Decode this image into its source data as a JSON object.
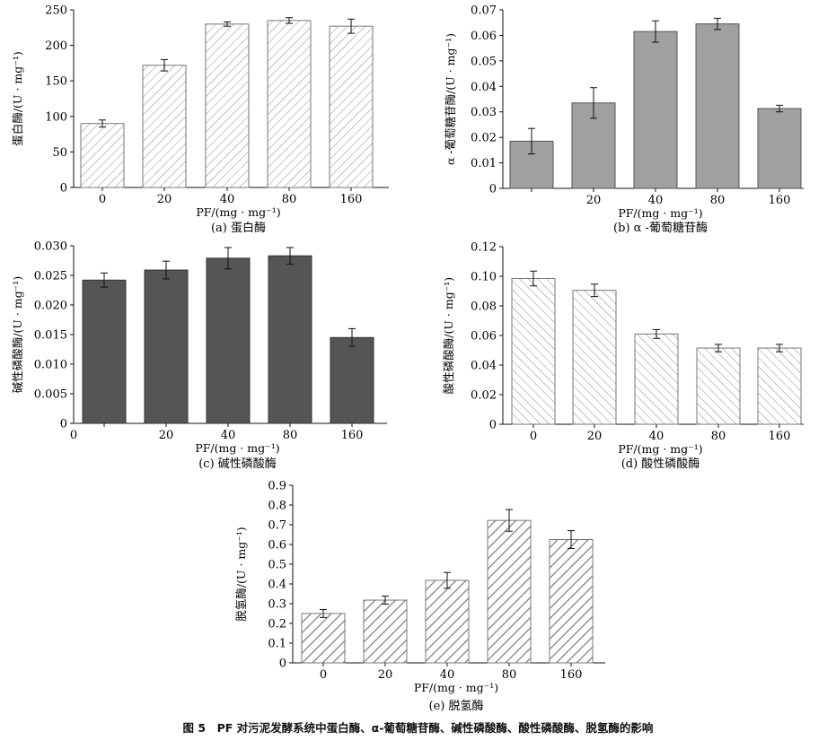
{
  "figure_caption": "图 5　PF 对污泥发酵系统中蛋白酶、α-葡萄糖苷酶、碱性磷酸酶、酸性磷酸酶、脱氢酶的影响",
  "colors": {
    "axis": "#111111",
    "hatch": "#8c8c8c",
    "solid_gray": "#a0a0a0",
    "solid_dark": "#555555"
  },
  "chart_data": [
    {
      "id": "a",
      "type": "bar",
      "caption": "(a) 蛋白酶",
      "xlabel": "PF/(mg · mg⁻¹)",
      "ylabel": "蛋白酶/(U · mg⁻¹)",
      "categories": [
        "0",
        "20",
        "40",
        "80",
        "160"
      ],
      "x_tick_labels": [
        "0",
        "20",
        "40",
        "80",
        "160"
      ],
      "values": [
        90,
        172,
        230,
        235,
        227
      ],
      "errors": [
        5,
        8,
        3,
        4,
        10
      ],
      "ylim": [
        0,
        250
      ],
      "y_ticks": [
        "0",
        "50",
        "100",
        "150",
        "200",
        "250"
      ],
      "fill": "hatch-forward"
    },
    {
      "id": "b",
      "type": "bar",
      "caption": "(b) α -葡萄糖苷酶",
      "xlabel": "PF/(mg · mg⁻¹)",
      "ylabel": "α -葡萄糖苷酶/(U · mg⁻¹)",
      "categories": [
        "0",
        "20",
        "40",
        "80",
        "160"
      ],
      "x_tick_labels": [
        "0",
        "20",
        "40",
        "80",
        "160"
      ],
      "values": [
        0.0185,
        0.0335,
        0.0615,
        0.0645,
        0.0313
      ],
      "errors": [
        0.005,
        0.006,
        0.0042,
        0.0022,
        0.0013
      ],
      "ylim": [
        0,
        0.07
      ],
      "y_ticks": [
        "0",
        "0.01",
        "0.02",
        "0.03",
        "0.04",
        "0.05",
        "0.06",
        "0.07"
      ],
      "fill": "solid-gray"
    },
    {
      "id": "c",
      "type": "bar",
      "caption": "(c) 碱性磷酸酶",
      "xlabel": "PF/(mg · mg⁻¹)",
      "ylabel": "碱性磷酸酶/(U · mg⁻¹)",
      "categories": [
        "0",
        "20",
        "40",
        "80",
        "160"
      ],
      "x_tick_labels": [
        "0",
        "20",
        "40",
        "80",
        "160"
      ],
      "values": [
        0.0242,
        0.0259,
        0.0279,
        0.0283,
        0.0145
      ],
      "errors": [
        0.0012,
        0.0015,
        0.0018,
        0.0014,
        0.0015
      ],
      "ylim": [
        0,
        0.03
      ],
      "y_ticks": [
        "0",
        "0.005",
        "0.010",
        "0.015",
        "0.020",
        "0.025",
        "0.030"
      ],
      "fill": "solid-dark"
    },
    {
      "id": "d",
      "type": "bar",
      "caption": "(d) 酸性磷酸酶",
      "xlabel": "PF/(mg · mg⁻¹)",
      "ylabel": "酸性磷酸酶/(U · mg⁻¹)",
      "categories": [
        "0",
        "20",
        "40",
        "80",
        "160"
      ],
      "x_tick_labels": [
        "0",
        "20",
        "40",
        "80",
        "160"
      ],
      "values": [
        0.0985,
        0.0905,
        0.061,
        0.0515,
        0.0515
      ],
      "errors": [
        0.005,
        0.0042,
        0.003,
        0.0025,
        0.0025
      ],
      "ylim": [
        0,
        0.12
      ],
      "y_ticks": [
        "0",
        "0.02",
        "0.04",
        "0.06",
        "0.08",
        "0.10",
        "0.12"
      ],
      "fill": "hatch-back"
    },
    {
      "id": "e",
      "type": "bar",
      "caption": "(e) 脱氢酶",
      "xlabel": "PF/(mg · mg⁻¹)",
      "ylabel": "脱氢酶/(U · mg⁻¹)",
      "categories": [
        "0",
        "20",
        "40",
        "80",
        "160"
      ],
      "x_tick_labels": [
        "0",
        "20",
        "40",
        "80",
        "160"
      ],
      "values": [
        0.25,
        0.318,
        0.418,
        0.722,
        0.625
      ],
      "errors": [
        0.02,
        0.02,
        0.04,
        0.055,
        0.045
      ],
      "ylim": [
        0,
        0.9
      ],
      "y_ticks": [
        "0",
        "0.1",
        "0.2",
        "0.3",
        "0.4",
        "0.5",
        "0.6",
        "0.7",
        "0.8",
        "0.9"
      ],
      "fill": "hatch-forward-thick"
    }
  ]
}
